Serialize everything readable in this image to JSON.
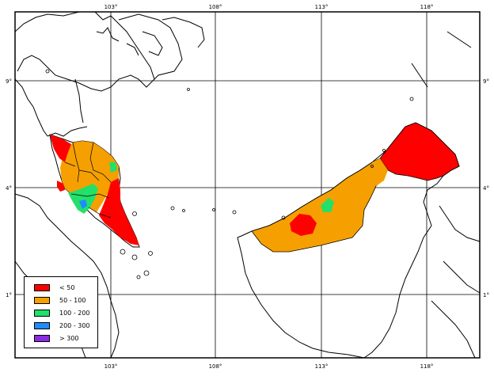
{
  "map": {
    "lon_ticks": [
      "103°",
      "108°",
      "113°",
      "118°"
    ],
    "lat_ticks": [
      "9°",
      "4°",
      "1°"
    ],
    "colors": {
      "coast": "#000000",
      "grid": "#000000",
      "land": "#ffffff",
      "lt50": "#ff0000",
      "50_100": "#f5a000",
      "100_200": "#22e06a",
      "200_300": "#1f8bff",
      "gt300": "#8a2be2"
    }
  },
  "legend": {
    "items": [
      {
        "label": "< 50",
        "color": "#ff0000"
      },
      {
        "label": "50 - 100",
        "color": "#f5a000"
      },
      {
        "label": "100 - 200",
        "color": "#22e06a"
      },
      {
        "label": "200 - 300",
        "color": "#1f8bff"
      },
      {
        "label": "> 300",
        "color": "#8a2be2"
      }
    ]
  }
}
